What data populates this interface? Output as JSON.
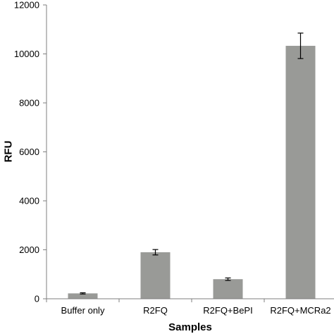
{
  "chart_data": {
    "type": "bar",
    "title": "",
    "xlabel": "Samples",
    "ylabel": "RFU",
    "ylim": [
      0,
      12000
    ],
    "yticks": [
      0,
      2000,
      4000,
      6000,
      8000,
      10000,
      12000
    ],
    "ytick_labels": [
      "0",
      "2000",
      "4000",
      "6000",
      "8000",
      "10000",
      "12000"
    ],
    "categories": [
      "Buffer only",
      "R2FQ",
      "R2FQ+BePI",
      "R2FQ+MCRa2"
    ],
    "values": [
      220,
      1900,
      800,
      10330
    ],
    "errors": [
      25,
      110,
      50,
      520
    ],
    "grid": false,
    "legend": "none",
    "colors": {
      "bar": "#999a97",
      "axis": "#7f7f7f",
      "errorbar": "#000000",
      "text": "#000000"
    }
  }
}
